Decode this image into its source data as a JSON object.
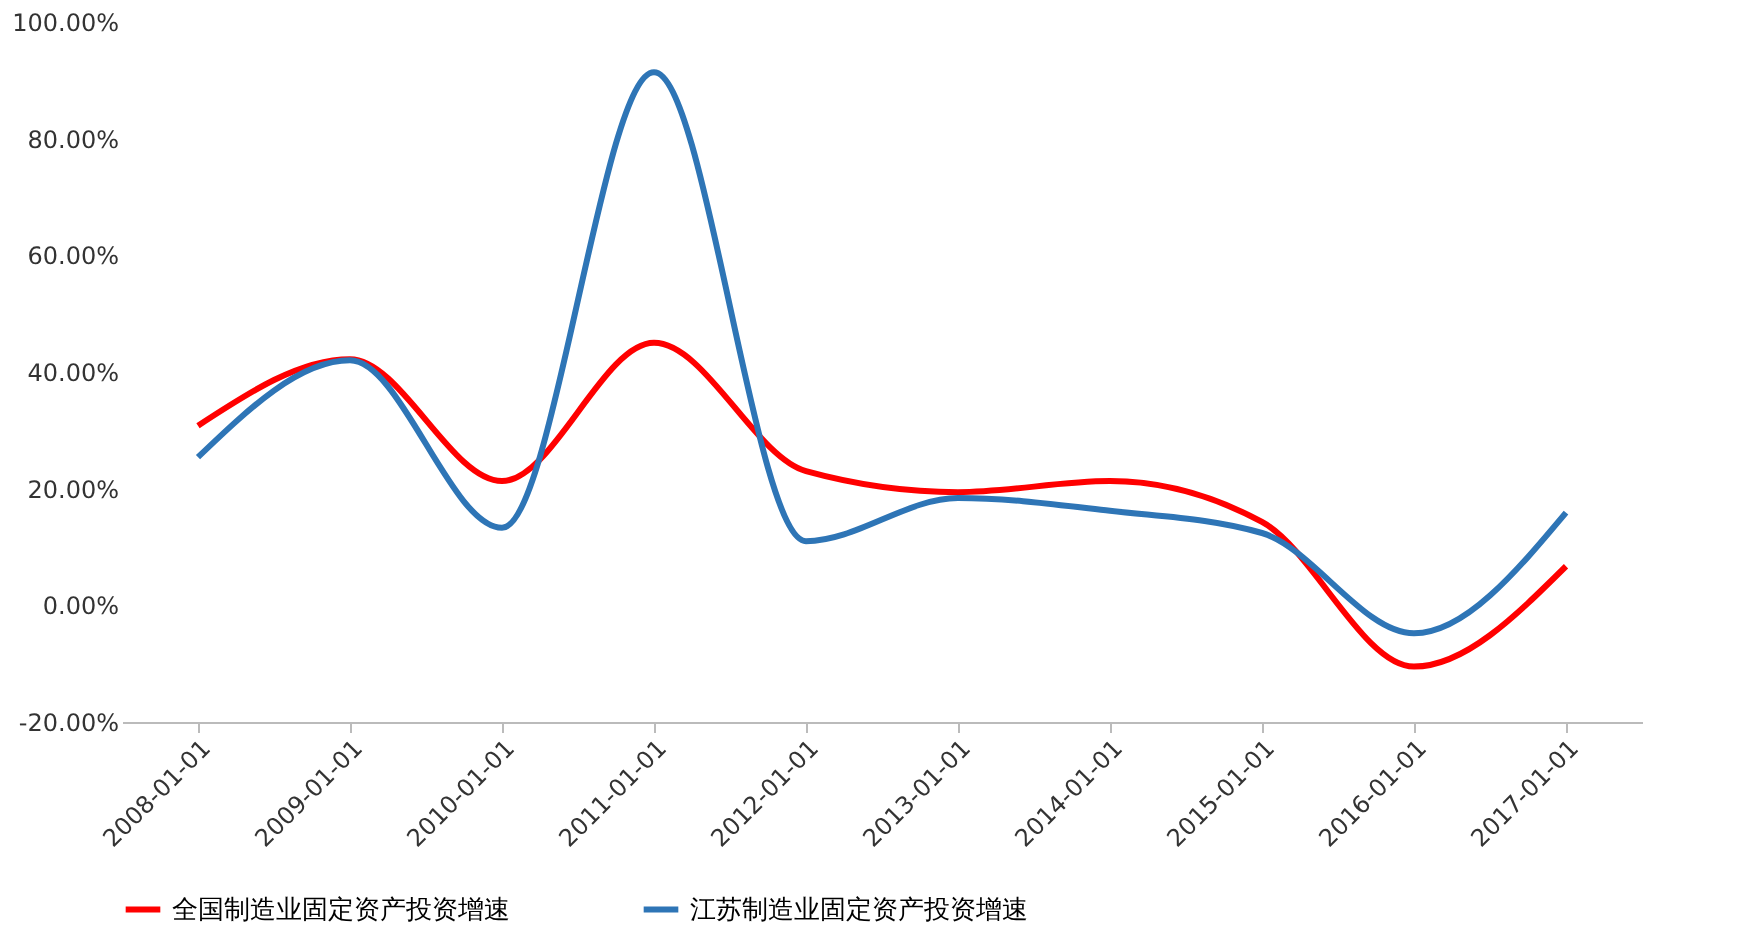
{
  "chart_data": {
    "type": "line",
    "categories": [
      "2008-01-01",
      "2009-01-01",
      "2010-01-01",
      "2011-01-01",
      "2012-01-01",
      "2013-01-01",
      "2014-01-01",
      "2015-01-01",
      "2016-01-01",
      "2017-01-01"
    ],
    "series": [
      {
        "name": "全国制造业固定资产投资增速",
        "color": "#ff0000",
        "values": [
          30.8,
          42.2,
          21.3,
          45.0,
          23.0,
          19.4,
          21.3,
          14.3,
          -10.5,
          6.7
        ]
      },
      {
        "name": "江苏制造业固定资产投资增速",
        "color": "#2e75b6",
        "values": [
          25.4,
          42.0,
          13.3,
          91.4,
          11.0,
          18.4,
          16.2,
          12.4,
          -4.8,
          15.9
        ]
      }
    ],
    "ylim": [
      -20,
      100
    ],
    "yticks": [
      {
        "value": -20,
        "label": "-20.00%"
      },
      {
        "value": 0,
        "label": "0.00%"
      },
      {
        "value": 20,
        "label": "20.00%"
      },
      {
        "value": 40,
        "label": "40.00%"
      },
      {
        "value": 60,
        "label": "60.00%"
      },
      {
        "value": 80,
        "label": "80.00%"
      },
      {
        "value": 100,
        "label": "100.00%"
      }
    ],
    "grid": false,
    "legend": "bottom",
    "marker": "none",
    "line_style": "solid"
  }
}
